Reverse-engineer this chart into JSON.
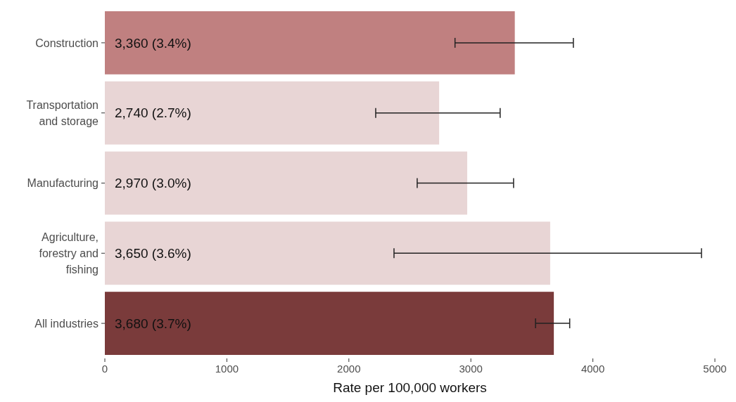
{
  "chart_data": {
    "type": "bar",
    "orientation": "horizontal",
    "xlabel": "Rate per 100,000 workers",
    "categories": [
      "Construction",
      "Transportation and storage",
      "Manufacturing",
      "Agriculture, forestry and fishing",
      "All industries"
    ],
    "values": [
      3360,
      2740,
      2970,
      3650,
      3680
    ],
    "colors": [
      "#c08080",
      "#e8d5d5",
      "#e8d5d5",
      "#e8d5d5",
      "#7a3b3b"
    ],
    "errors": [
      [
        2870,
        3840
      ],
      [
        2220,
        3240
      ],
      [
        2560,
        3350
      ],
      [
        2370,
        4890
      ],
      [
        3530,
        3810
      ]
    ],
    "value_labels": [
      "3,360 (3.4%)",
      "2,740 (2.7%)",
      "2,970 (3.0%)",
      "3,650 (3.6%)",
      "3,680 (3.7%)"
    ],
    "xlim": [
      0,
      5000
    ],
    "xticks": [
      0,
      1000,
      2000,
      3000,
      4000,
      5000
    ],
    "grid": false
  }
}
